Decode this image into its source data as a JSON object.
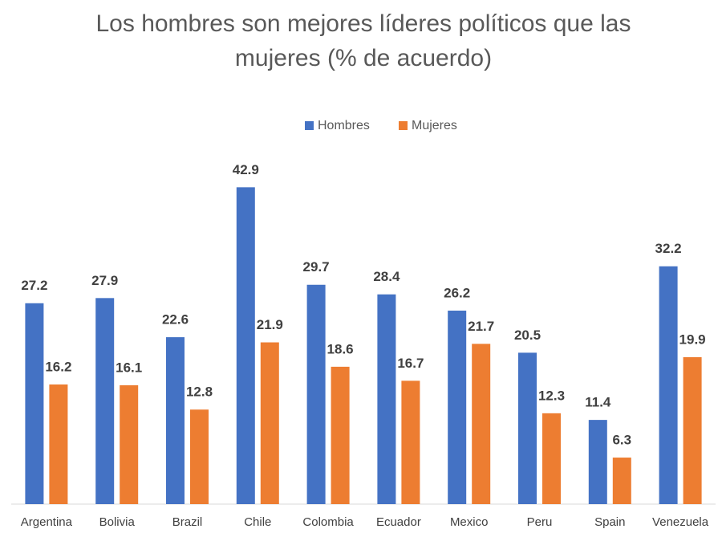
{
  "chart_data": {
    "type": "bar",
    "title": [
      "Los hombres son mejores líderes políticos que las",
      "mujeres (% de acuerdo)"
    ],
    "categories": [
      "Argentina",
      "Bolivia",
      "Brazil",
      "Chile",
      "Colombia",
      "Ecuador",
      "Mexico",
      "Peru",
      "Spain",
      "Venezuela"
    ],
    "series": [
      {
        "name": "Hombres",
        "color": "#4472c4",
        "values": [
          27.2,
          27.9,
          22.6,
          42.9,
          29.7,
          28.4,
          26.2,
          20.5,
          11.4,
          32.2
        ]
      },
      {
        "name": "Mujeres",
        "color": "#ed7d31",
        "values": [
          16.2,
          16.1,
          12.8,
          21.9,
          18.6,
          16.7,
          21.7,
          12.3,
          6.3,
          19.9
        ]
      }
    ],
    "legend": "top"
  }
}
